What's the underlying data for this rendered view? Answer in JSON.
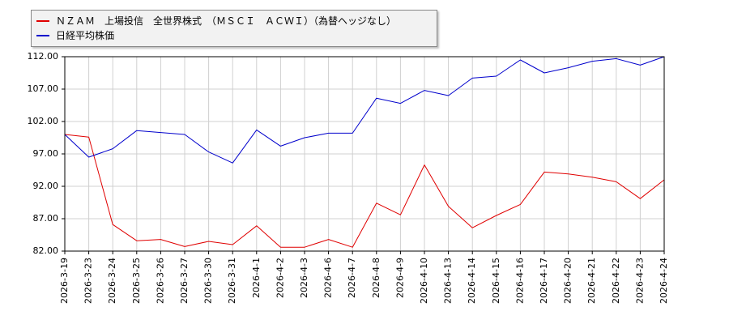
{
  "chart_data": {
    "type": "line",
    "x": [
      "2026-3-19",
      "2026-3-23",
      "2026-3-24",
      "2026-3-25",
      "2026-3-26",
      "2026-3-27",
      "2026-3-30",
      "2026-3-31",
      "2026-4-1",
      "2026-4-2",
      "2026-4-3",
      "2026-4-6",
      "2026-4-7",
      "2026-4-8",
      "2026-4-9",
      "2026-4-10",
      "2026-4-13",
      "2026-4-14",
      "2026-4-15",
      "2026-4-16",
      "2026-4-17",
      "2026-4-20",
      "2026-4-21",
      "2026-4-22",
      "2026-4-23",
      "2026-4-24"
    ],
    "series": [
      {
        "name": "ＮＺＡＭ　上場投信　全世界株式　（ＭＳＣＩ　ＡＣＷＩ）（為替ヘッジなし）",
        "color": "#e00000",
        "values": [
          100.0,
          99.6,
          86.1,
          83.6,
          83.8,
          82.7,
          83.5,
          83.0,
          85.9,
          82.6,
          82.6,
          83.8,
          82.6,
          89.4,
          87.6,
          95.3,
          88.9,
          85.6,
          87.5,
          89.2,
          94.2,
          93.9,
          93.4,
          92.7,
          90.1,
          93.0
        ]
      },
      {
        "name": "日経平均株価",
        "color": "#0000cc",
        "values": [
          100.0,
          96.5,
          97.8,
          100.6,
          100.3,
          100.0,
          97.3,
          95.6,
          100.7,
          98.2,
          99.5,
          100.2,
          100.2,
          105.6,
          104.8,
          106.8,
          106.0,
          108.7,
          109.0,
          111.5,
          109.5,
          110.3,
          111.3,
          111.7,
          110.7,
          112.0
        ]
      }
    ],
    "yticks": [
      "82.00",
      "87.00",
      "92.00",
      "97.00",
      "102.00",
      "107.00",
      "112.00"
    ],
    "ylim": [
      82,
      112
    ],
    "grid": true,
    "legend_position": "top-left"
  }
}
